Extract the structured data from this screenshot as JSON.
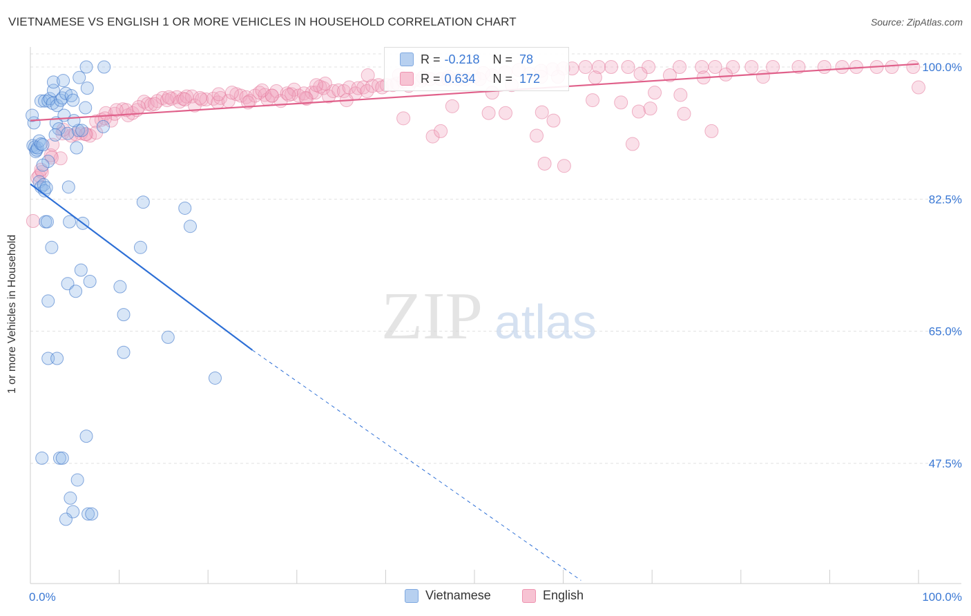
{
  "header": {
    "title": "VIETNAMESE VS ENGLISH 1 OR MORE VEHICLES IN HOUSEHOLD CORRELATION CHART",
    "source": "Source: ZipAtlas.com"
  },
  "watermark": {
    "zip": "ZIP",
    "atlas": "atlas"
  },
  "stats": {
    "r_label": "R =",
    "n_label": "N =",
    "vietnamese": {
      "r": "-0.218",
      "n": "78"
    },
    "english": {
      "r": "0.634",
      "n": "172"
    }
  },
  "colors": {
    "vietnamese": "#8fb6e8",
    "vietnamese_line": "#2d6fd6",
    "english": "#f2a7bf",
    "english_line": "#e0608a",
    "tick_label": "#3a78d4"
  },
  "chart_data": {
    "type": "scatter",
    "title": "VIETNAMESE VS ENGLISH 1 OR MORE VEHICLES IN HOUSEHOLD CORRELATION CHART",
    "ylabel": "1 or more Vehicles in Household",
    "xlabel": "",
    "xlim": [
      0,
      100
    ],
    "ylim": [
      32,
      102
    ],
    "x_tick_labels": [
      "0.0%",
      "100.0%"
    ],
    "y_ticks": [
      {
        "value": 100,
        "label": "100.0%"
      },
      {
        "value": 82.5,
        "label": "82.5%"
      },
      {
        "value": 65,
        "label": "65.0%"
      },
      {
        "value": 47.5,
        "label": "47.5%"
      }
    ],
    "grid": true,
    "legend": {
      "placement": "bottom"
    },
    "series": [
      {
        "name": "Vietnamese",
        "r": -0.218,
        "n": 78,
        "trend": {
          "x0": 0,
          "y0": 84.5,
          "x1": 25,
          "y1": 62.5,
          "dashed_to_x": 62,
          "dashed_to_y": 32
        },
        "points": [
          [
            0.3,
            89.6
          ],
          [
            0.5,
            89.4
          ],
          [
            0.6,
            88.8
          ],
          [
            0.7,
            89.0
          ],
          [
            0.8,
            89.3
          ],
          [
            0.4,
            92.6
          ],
          [
            1.0,
            90.2
          ],
          [
            1.2,
            89.8
          ],
          [
            1.4,
            89.7
          ],
          [
            1.0,
            84.8
          ],
          [
            1.2,
            84.1
          ],
          [
            1.5,
            84.4
          ],
          [
            1.6,
            83.6
          ],
          [
            1.8,
            84.0
          ],
          [
            2.0,
            87.5
          ],
          [
            1.4,
            87.0
          ],
          [
            1.2,
            95.5
          ],
          [
            1.6,
            95.5
          ],
          [
            2.0,
            95.5
          ],
          [
            2.2,
            95.8
          ],
          [
            2.5,
            95.2
          ],
          [
            2.6,
            96.9
          ],
          [
            2.6,
            98.0
          ],
          [
            2.9,
            92.6
          ],
          [
            3.0,
            94.9
          ],
          [
            3.2,
            91.8
          ],
          [
            3.4,
            95.6
          ],
          [
            3.6,
            95.9
          ],
          [
            3.7,
            98.2
          ],
          [
            3.8,
            93.6
          ],
          [
            4.0,
            96.5
          ],
          [
            4.2,
            91.2
          ],
          [
            4.6,
            96.2
          ],
          [
            4.8,
            95.6
          ],
          [
            5.2,
            89.3
          ],
          [
            5.4,
            91.6
          ],
          [
            5.5,
            98.6
          ],
          [
            5.8,
            91.6
          ],
          [
            6.2,
            94.6
          ],
          [
            6.4,
            97.2
          ],
          [
            6.3,
            100.0
          ],
          [
            8.3,
            100.0
          ],
          [
            8.2,
            92.1
          ],
          [
            4.3,
            84.1
          ],
          [
            1.7,
            79.5
          ],
          [
            1.9,
            79.5
          ],
          [
            2.4,
            76.1
          ],
          [
            4.4,
            79.5
          ],
          [
            5.9,
            79.3
          ],
          [
            12.7,
            82.1
          ],
          [
            17.4,
            81.3
          ],
          [
            18.0,
            78.9
          ],
          [
            12.4,
            76.1
          ],
          [
            5.7,
            73.1
          ],
          [
            4.2,
            71.3
          ],
          [
            5.1,
            70.3
          ],
          [
            6.7,
            71.6
          ],
          [
            10.1,
            70.9
          ],
          [
            2.0,
            69.0
          ],
          [
            10.5,
            67.2
          ],
          [
            15.5,
            64.2
          ],
          [
            2.0,
            61.4
          ],
          [
            3.0,
            61.4
          ],
          [
            10.5,
            62.2
          ],
          [
            20.8,
            58.8
          ],
          [
            6.3,
            51.1
          ],
          [
            1.3,
            48.2
          ],
          [
            3.3,
            48.2
          ],
          [
            3.6,
            48.2
          ],
          [
            5.3,
            45.3
          ],
          [
            4.5,
            42.9
          ],
          [
            4.8,
            41.1
          ],
          [
            4.0,
            40.1
          ],
          [
            6.5,
            40.8
          ],
          [
            6.9,
            40.8
          ],
          [
            0.2,
            93.6
          ],
          [
            2.8,
            91.0
          ],
          [
            4.9,
            92.9
          ]
        ]
      },
      {
        "name": "English",
        "r": 0.634,
        "n": 172,
        "trend": {
          "x0": 0,
          "y0": 92.9,
          "x1": 100,
          "y1": 100.4
        },
        "points": [
          [
            0.3,
            79.6
          ],
          [
            0.8,
            85.3
          ],
          [
            1.0,
            85.6
          ],
          [
            1.3,
            86.1
          ],
          [
            2.3,
            88.3
          ],
          [
            3.4,
            87.9
          ],
          [
            2.5,
            89.7
          ],
          [
            3.6,
            91.2
          ],
          [
            4.6,
            90.9
          ],
          [
            5.7,
            91.2
          ],
          [
            6.3,
            91.1
          ],
          [
            6.7,
            90.9
          ],
          [
            7.4,
            92.8
          ],
          [
            8.0,
            93.0
          ],
          [
            8.5,
            93.9
          ],
          [
            9.1,
            92.9
          ],
          [
            9.5,
            93.8
          ],
          [
            10.4,
            94.4
          ],
          [
            11.0,
            93.6
          ],
          [
            11.5,
            93.9
          ],
          [
            12.0,
            94.3
          ],
          [
            12.8,
            95.4
          ],
          [
            13.2,
            95.1
          ],
          [
            13.6,
            95.0
          ],
          [
            14.3,
            95.5
          ],
          [
            14.9,
            95.9
          ],
          [
            15.4,
            95.6
          ],
          [
            15.9,
            95.8
          ],
          [
            16.5,
            96.0
          ],
          [
            16.8,
            95.4
          ],
          [
            17.2,
            95.8
          ],
          [
            17.6,
            96.1
          ],
          [
            18.2,
            96.1
          ],
          [
            18.5,
            94.9
          ],
          [
            19.3,
            95.7
          ],
          [
            19.8,
            95.7
          ],
          [
            20.6,
            95.8
          ],
          [
            21.1,
            95.3
          ],
          [
            21.4,
            95.9
          ],
          [
            22.3,
            95.5
          ],
          [
            23.2,
            96.4
          ],
          [
            23.7,
            96.2
          ],
          [
            24.3,
            96.0
          ],
          [
            24.7,
            95.5
          ],
          [
            25.3,
            96.2
          ],
          [
            25.8,
            96.6
          ],
          [
            26.4,
            96.3
          ],
          [
            26.7,
            95.7
          ],
          [
            27.2,
            96.2
          ],
          [
            27.7,
            96.8
          ],
          [
            28.2,
            95.5
          ],
          [
            28.9,
            96.5
          ],
          [
            29.4,
            96.4
          ],
          [
            29.7,
            97.0
          ],
          [
            30.2,
            96.2
          ],
          [
            30.8,
            96.5
          ],
          [
            31.1,
            95.8
          ],
          [
            31.7,
            96.6
          ],
          [
            32.1,
            96.6
          ],
          [
            32.6,
            97.4
          ],
          [
            33.0,
            97.2
          ],
          [
            33.6,
            96.1
          ],
          [
            34.1,
            96.8
          ],
          [
            34.7,
            96.9
          ],
          [
            35.3,
            96.8
          ],
          [
            35.9,
            97.3
          ],
          [
            36.6,
            96.5
          ],
          [
            36.9,
            97.2
          ],
          [
            37.5,
            97.3
          ],
          [
            37.9,
            96.8
          ],
          [
            38.5,
            97.5
          ],
          [
            39.2,
            97.6
          ],
          [
            39.6,
            97.3
          ],
          [
            40.1,
            97.6
          ],
          [
            40.8,
            97.6
          ],
          [
            41.3,
            97.8
          ],
          [
            42.0,
            98.1
          ],
          [
            42.6,
            97.5
          ],
          [
            43.2,
            98.2
          ],
          [
            44.0,
            98.2
          ],
          [
            45.0,
            98.4
          ],
          [
            46.2,
            98.4
          ],
          [
            47.0,
            98.4
          ],
          [
            48.2,
            98.4
          ],
          [
            49.0,
            98.4
          ],
          [
            50.0,
            98.7
          ],
          [
            51.0,
            99.2
          ],
          [
            52.0,
            98.9
          ],
          [
            53.5,
            99.3
          ],
          [
            55.0,
            99.6
          ],
          [
            56.2,
            99.1
          ],
          [
            57.5,
            99.5
          ],
          [
            58.8,
            99.7
          ],
          [
            60.0,
            99.8
          ],
          [
            61.0,
            99.8
          ],
          [
            62.5,
            100.0
          ],
          [
            64.0,
            100.0
          ],
          [
            65.4,
            100.0
          ],
          [
            67.3,
            100.0
          ],
          [
            69.6,
            100.0
          ],
          [
            73.1,
            100.0
          ],
          [
            75.6,
            100.0
          ],
          [
            77.1,
            100.0
          ],
          [
            79.1,
            100.0
          ],
          [
            81.2,
            100.0
          ],
          [
            83.6,
            100.0
          ],
          [
            86.5,
            100.0
          ],
          [
            89.4,
            100.0
          ],
          [
            91.4,
            100.0
          ],
          [
            93.0,
            100.0
          ],
          [
            95.3,
            100.0
          ],
          [
            97.0,
            100.0
          ],
          [
            99.4,
            100.0
          ],
          [
            100.0,
            97.3
          ],
          [
            68.7,
            99.1
          ],
          [
            72.0,
            98.9
          ],
          [
            75.8,
            98.6
          ],
          [
            78.3,
            99.0
          ],
          [
            82.5,
            98.7
          ],
          [
            63.6,
            98.6
          ],
          [
            59.4,
            98.7
          ],
          [
            57.5,
            98.7
          ],
          [
            54.2,
            97.6
          ],
          [
            52.0,
            96.6
          ],
          [
            50.6,
            98.4
          ],
          [
            47.1,
            98.7
          ],
          [
            44.2,
            98.6
          ],
          [
            41.5,
            98.9
          ],
          [
            38.0,
            98.9
          ],
          [
            35.6,
            95.6
          ],
          [
            33.2,
            97.8
          ],
          [
            32.2,
            97.6
          ],
          [
            31.0,
            95.9
          ],
          [
            29.1,
            96.3
          ],
          [
            27.2,
            96.2
          ],
          [
            26.1,
            96.9
          ],
          [
            24.5,
            95.3
          ],
          [
            22.7,
            96.6
          ],
          [
            21.2,
            96.4
          ],
          [
            19.1,
            95.9
          ],
          [
            17.4,
            95.7
          ],
          [
            15.6,
            96.0
          ],
          [
            14.0,
            95.1
          ],
          [
            12.2,
            94.7
          ],
          [
            10.8,
            94.3
          ],
          [
            9.7,
            94.3
          ],
          [
            8.4,
            93.2
          ],
          [
            7.4,
            91.3
          ],
          [
            6.2,
            91.1
          ],
          [
            5.1,
            91.1
          ],
          [
            3.7,
            91.7
          ],
          [
            2.4,
            88.0
          ],
          [
            1.2,
            86.4
          ],
          [
            42.0,
            93.2
          ],
          [
            45.3,
            90.8
          ],
          [
            46.2,
            91.5
          ],
          [
            47.5,
            94.8
          ],
          [
            51.6,
            93.9
          ],
          [
            53.5,
            93.9
          ],
          [
            57.6,
            94.0
          ],
          [
            58.9,
            92.9
          ],
          [
            57.9,
            87.2
          ],
          [
            60.1,
            86.9
          ],
          [
            57.0,
            90.9
          ],
          [
            63.3,
            95.6
          ],
          [
            66.5,
            95.3
          ],
          [
            68.5,
            94.1
          ],
          [
            69.8,
            94.5
          ],
          [
            67.8,
            89.8
          ],
          [
            70.3,
            96.6
          ],
          [
            73.2,
            96.3
          ],
          [
            73.6,
            93.8
          ],
          [
            76.7,
            91.5
          ]
        ]
      }
    ]
  },
  "legend": {
    "items": [
      {
        "label": "Vietnamese"
      },
      {
        "label": "English"
      }
    ]
  }
}
